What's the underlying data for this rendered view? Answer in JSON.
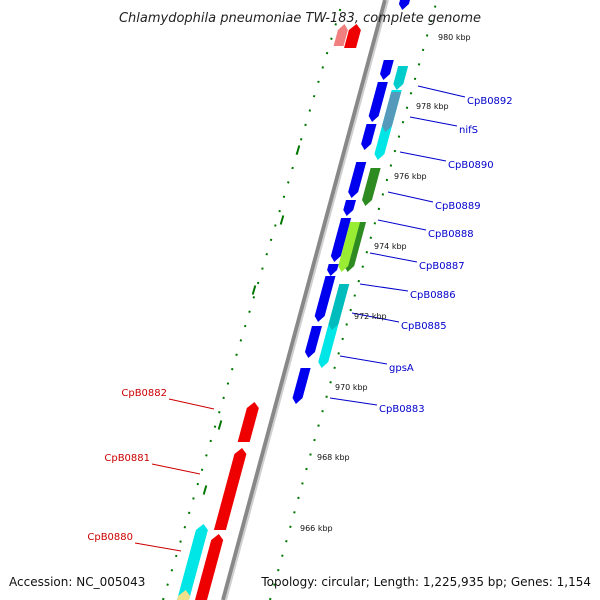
{
  "title": "Chlamydophila pneumoniae TW-183, complete genome",
  "footer": {
    "accession": "Accession: NC_005043",
    "topology": "Topology: circular; Length: 1,225,935 bp; Genes: 1,154"
  },
  "colors": {
    "plus_strand": "#0000ee",
    "minus_strand": "#ee0000",
    "backbone": "#888888",
    "gc_dots": "#007700",
    "label_blue": "#0000cc",
    "label_red": "#cc0000"
  },
  "scale_ticks": [
    "980 kbp",
    "978 kbp",
    "976 kbp",
    "974 kbp",
    "972 kbp",
    "970 kbp",
    "968 kbp",
    "966 kbp"
  ],
  "gene_labels_right": [
    "CpB0892",
    "nifS",
    "CpB0890",
    "CpB0889",
    "CpB0888",
    "CpB0887",
    "CpB0886",
    "CpB0885",
    "gpsA",
    "CpB0883"
  ],
  "gene_labels_left": [
    "CpB0882",
    "CpB0881",
    "CpB0880"
  ]
}
